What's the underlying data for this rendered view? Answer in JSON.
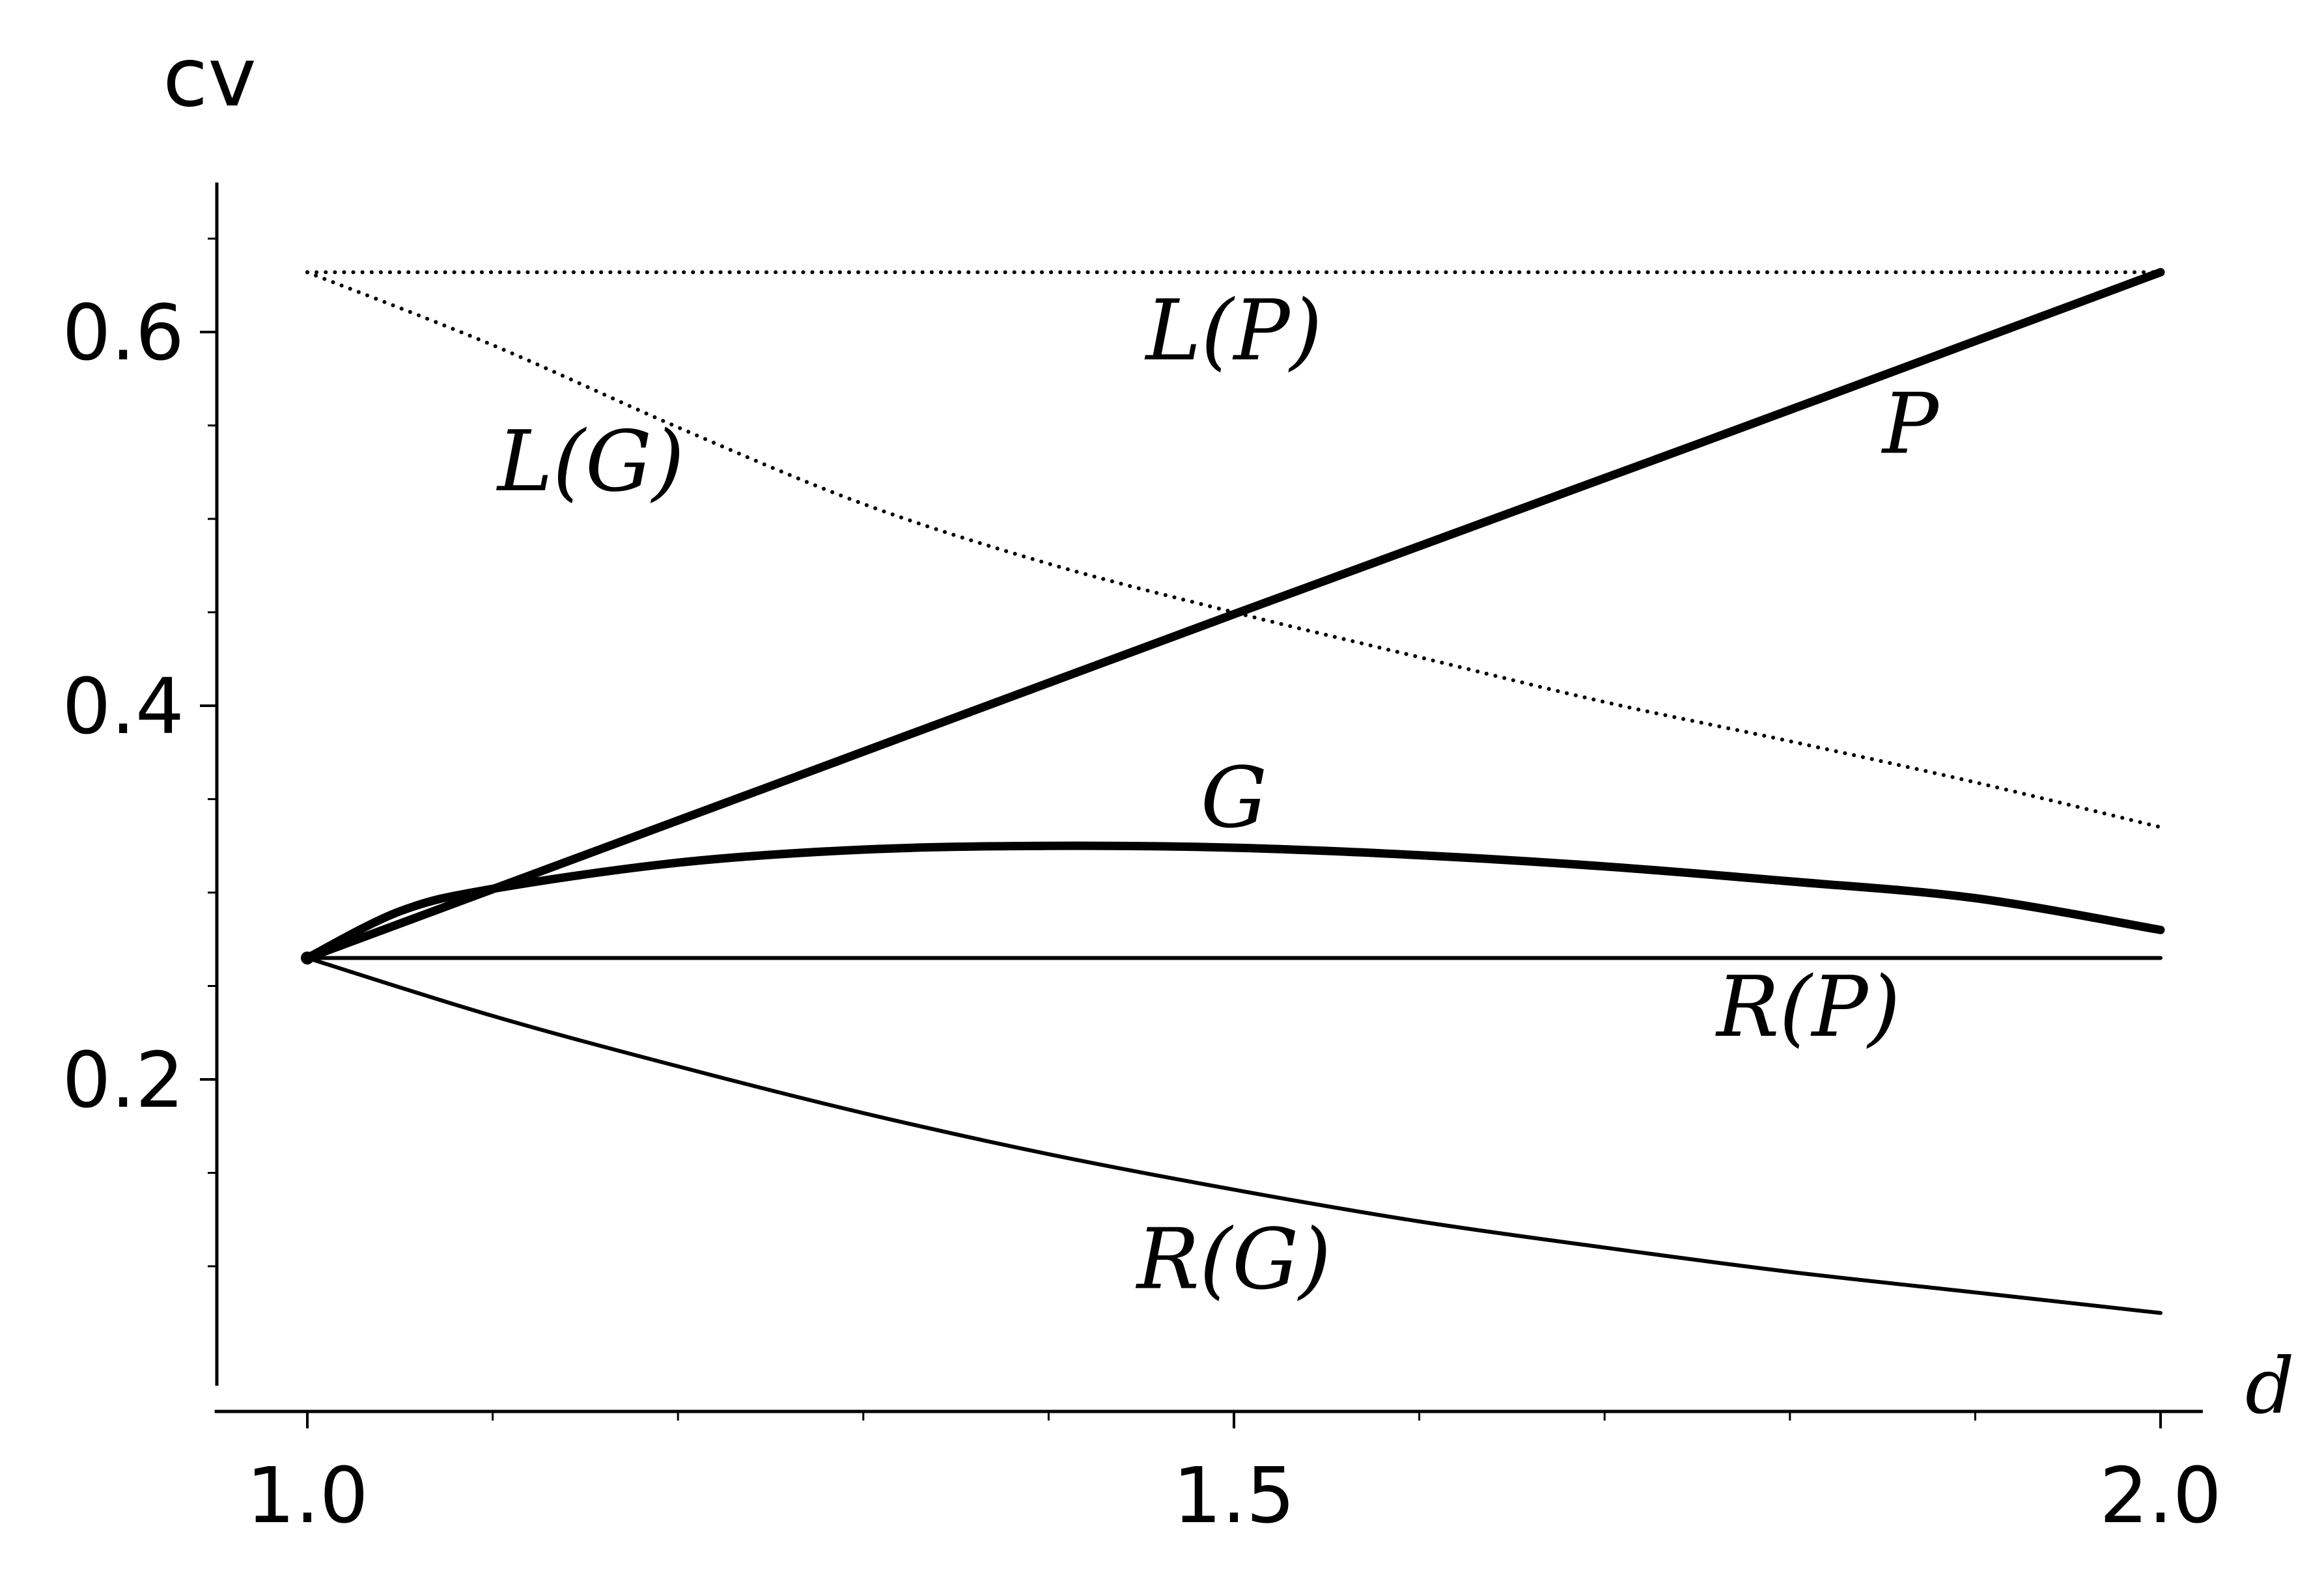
{
  "chart_data": {
    "type": "line",
    "title": "",
    "xlabel": "d",
    "ylabel": "cv",
    "xlim": [
      0.95,
      2.02
    ],
    "ylim": [
      0.05,
      0.68
    ],
    "x_ticks": [
      1.0,
      1.5,
      2.0
    ],
    "x_tick_labels": [
      "1.0",
      "1.5",
      "2.0"
    ],
    "y_ticks": [
      0.2,
      0.4,
      0.6
    ],
    "y_tick_labels": [
      "0.2",
      "0.4",
      "0.6"
    ],
    "x_minor_step": 0.1,
    "y_minor_step": 0.05,
    "grid": false,
    "legend": "none",
    "colors": {
      "line": "#000000"
    },
    "series": [
      {
        "name": "L(P)",
        "style": "dotted",
        "x": [
          1.0,
          2.0
        ],
        "y": [
          0.632,
          0.632
        ]
      },
      {
        "name": "L(G)",
        "style": "dotted",
        "x": [
          1.0,
          1.1,
          1.2,
          1.3,
          1.4,
          1.5,
          1.6,
          1.7,
          1.8,
          1.9,
          2.0
        ],
        "y": [
          0.632,
          0.593,
          0.549,
          0.508,
          0.476,
          0.45,
          0.426,
          0.402,
          0.381,
          0.359,
          0.335
        ]
      },
      {
        "name": "P",
        "style": "thick",
        "x": [
          1.0,
          1.25,
          1.5,
          1.75,
          2.0
        ],
        "y": [
          0.265,
          0.357,
          0.449,
          0.54,
          0.632
        ]
      },
      {
        "name": "G",
        "style": "thick",
        "x": [
          1.0,
          1.05,
          1.1,
          1.2,
          1.3,
          1.4,
          1.5,
          1.6,
          1.7,
          1.8,
          1.9,
          2.0
        ],
        "y": [
          0.265,
          0.29,
          0.302,
          0.316,
          0.323,
          0.325,
          0.324,
          0.32,
          0.314,
          0.306,
          0.297,
          0.28
        ]
      },
      {
        "name": "R(P)",
        "style": "thin",
        "x": [
          1.0,
          2.0
        ],
        "y": [
          0.265,
          0.265
        ]
      },
      {
        "name": "R(G)",
        "style": "thin",
        "x": [
          1.0,
          1.1,
          1.2,
          1.3,
          1.4,
          1.5,
          1.6,
          1.7,
          1.8,
          1.9,
          2.0
        ],
        "y": [
          0.265,
          0.234,
          0.207,
          0.182,
          0.16,
          0.141,
          0.124,
          0.11,
          0.097,
          0.086,
          0.075
        ]
      }
    ],
    "annotations": [
      {
        "text": "L(P)",
        "x": 1.5,
        "y": 0.6
      },
      {
        "text": "L(G)",
        "x": 1.153,
        "y": 0.53
      },
      {
        "text": "P",
        "x": 1.865,
        "y": 0.55
      },
      {
        "text": "G",
        "x": 1.5,
        "y": 0.35
      },
      {
        "text": "R(P)",
        "x": 1.81,
        "y": 0.238
      },
      {
        "text": "R(G)",
        "x": 1.5,
        "y": 0.103
      }
    ]
  }
}
